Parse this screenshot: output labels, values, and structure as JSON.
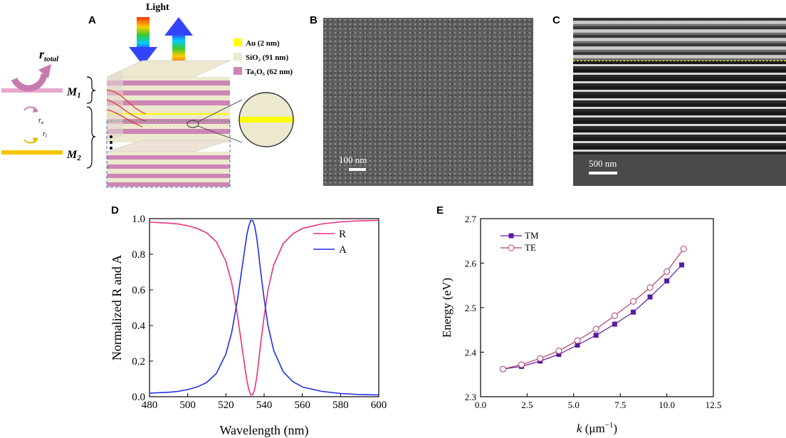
{
  "panels": {
    "a": "A",
    "b": "B",
    "c": "C",
    "d": "D",
    "e": "E"
  },
  "schematic": {
    "light": "Light",
    "legend": [
      {
        "label": "Au (2 nm)",
        "color": "#ffff00"
      },
      {
        "label": "SiO₂ (91 nm)",
        "color": "#ece9cf"
      },
      {
        "label": "Ta₂O₅ (62 nm)",
        "color": "#cc86b4"
      }
    ],
    "r_total": "r",
    "r_total_sub": "total",
    "r_u": "r",
    "r_u_sub": "u",
    "r_l": "r",
    "r_l_sub": "l",
    "m1": "M",
    "m1_sub": "1",
    "m2": "M",
    "m2_sub": "2"
  },
  "sem_b": {
    "scale": "100 nm"
  },
  "sem_c": {
    "scale": "500 nm"
  },
  "chart_data": [
    {
      "type": "line",
      "panel": "D",
      "xlabel": "Wavelength (nm)",
      "ylabel": "Normalized R and A",
      "xlim": [
        480,
        600
      ],
      "ylim": [
        0.0,
        1.0
      ],
      "xticks": [
        "480",
        "500",
        "520",
        "540",
        "560",
        "580",
        "600"
      ],
      "yticks": [
        "0.0",
        "0.2",
        "0.4",
        "0.6",
        "0.8",
        "1.0"
      ],
      "series": [
        {
          "name": "R",
          "color": "#e8317e",
          "x": [
            480,
            490,
            495,
            500,
            505,
            510,
            515,
            520,
            523,
            526,
            528,
            530,
            531,
            532,
            533,
            534,
            535,
            536,
            537,
            538,
            540,
            542,
            545,
            550,
            555,
            560,
            570,
            580,
            590,
            600
          ],
          "y": [
            0.98,
            0.975,
            0.97,
            0.96,
            0.945,
            0.92,
            0.87,
            0.76,
            0.64,
            0.46,
            0.31,
            0.16,
            0.09,
            0.04,
            0.01,
            0.01,
            0.04,
            0.1,
            0.18,
            0.28,
            0.45,
            0.6,
            0.74,
            0.86,
            0.915,
            0.945,
            0.97,
            0.982,
            0.988,
            0.99
          ]
        },
        {
          "name": "A",
          "color": "#1e2ee6",
          "x": [
            480,
            490,
            495,
            500,
            505,
            510,
            515,
            520,
            523,
            526,
            528,
            530,
            531,
            532,
            533,
            534,
            535,
            536,
            537,
            538,
            540,
            542,
            545,
            550,
            555,
            560,
            570,
            580,
            590,
            600
          ],
          "y": [
            0.02,
            0.025,
            0.03,
            0.04,
            0.055,
            0.08,
            0.13,
            0.24,
            0.36,
            0.54,
            0.69,
            0.84,
            0.91,
            0.96,
            0.99,
            0.99,
            0.96,
            0.9,
            0.82,
            0.72,
            0.55,
            0.4,
            0.26,
            0.14,
            0.085,
            0.055,
            0.03,
            0.018,
            0.012,
            0.01
          ]
        }
      ]
    },
    {
      "type": "line",
      "panel": "E",
      "xlabel": "k (μm⁻¹)",
      "xlabel_k": "k",
      "xlabel_unit": " (μm",
      "xlabel_sup": "−1",
      "xlabel_close": ")",
      "ylabel": "Energy (eV)",
      "xlim": [
        0.0,
        12.5
      ],
      "ylim": [
        2.3,
        2.7
      ],
      "xticks": [
        "0.0",
        "2.5",
        "5.0",
        "7.5",
        "10.0",
        "12.5"
      ],
      "yticks": [
        "2.3",
        "2.4",
        "2.5",
        "2.6",
        "2.7"
      ],
      "series": [
        {
          "name": "TM",
          "color": "#5a1aa0",
          "marker": "square",
          "x": [
            1.2,
            2.2,
            3.2,
            4.2,
            5.2,
            6.2,
            7.2,
            8.2,
            9.1,
            10.0,
            10.8
          ],
          "y": [
            2.362,
            2.368,
            2.38,
            2.395,
            2.416,
            2.438,
            2.463,
            2.49,
            2.524,
            2.56,
            2.596
          ]
        },
        {
          "name": "TE",
          "color": "#b03a6a",
          "marker": "circle",
          "x": [
            1.2,
            2.2,
            3.2,
            4.2,
            5.2,
            6.2,
            7.2,
            8.2,
            9.1,
            10.0,
            10.9
          ],
          "y": [
            2.362,
            2.372,
            2.386,
            2.403,
            2.426,
            2.452,
            2.482,
            2.514,
            2.545,
            2.581,
            2.632
          ]
        }
      ]
    }
  ]
}
